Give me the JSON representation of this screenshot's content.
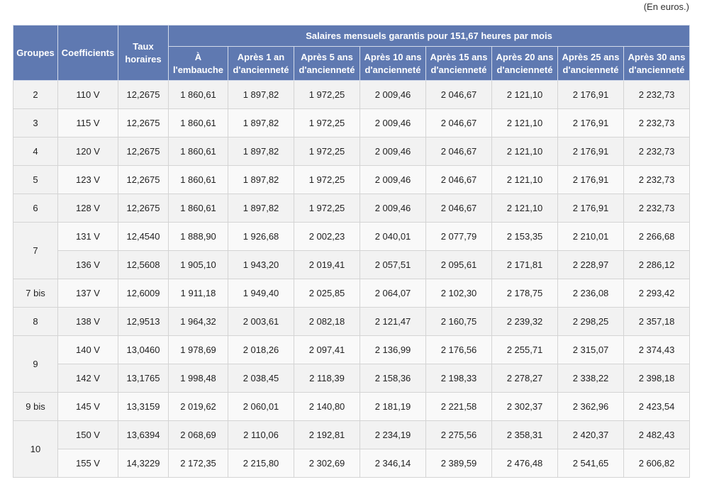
{
  "unit_note": "(En euros.)",
  "headers": {
    "groupes": "Groupes",
    "coefficients": "Coefficients",
    "taux_horaires": "Taux horaires",
    "salaires": "Salaires mensuels garantis pour 151,67 heures par mois",
    "periods": [
      "À l'embauche",
      "Après 1 an d'ancienneté",
      "Après 5 ans d'ancienneté",
      "Après 10 ans d'ancienneté",
      "Après 15 ans d'ancienneté",
      "Après 20 ans d'ancienneté",
      "Après 25 ans d'ancienneté",
      "Après 30 ans d'ancienneté"
    ]
  },
  "groups": [
    {
      "groupe": "2",
      "rows": [
        {
          "coef": "110 V",
          "taux": "12,2675",
          "salaires": [
            "1 860,61",
            "1 897,82",
            "1 972,25",
            "2 009,46",
            "2 046,67",
            "2 121,10",
            "2 176,91",
            "2 232,73"
          ]
        }
      ]
    },
    {
      "groupe": "3",
      "rows": [
        {
          "coef": "115 V",
          "taux": "12,2675",
          "salaires": [
            "1 860,61",
            "1 897,82",
            "1 972,25",
            "2 009,46",
            "2 046,67",
            "2 121,10",
            "2 176,91",
            "2 232,73"
          ]
        }
      ]
    },
    {
      "groupe": "4",
      "rows": [
        {
          "coef": "120 V",
          "taux": "12,2675",
          "salaires": [
            "1 860,61",
            "1 897,82",
            "1 972,25",
            "2 009,46",
            "2 046,67",
            "2 121,10",
            "2 176,91",
            "2 232,73"
          ]
        }
      ]
    },
    {
      "groupe": "5",
      "rows": [
        {
          "coef": "123 V",
          "taux": "12,2675",
          "salaires": [
            "1 860,61",
            "1 897,82",
            "1 972,25",
            "2 009,46",
            "2 046,67",
            "2 121,10",
            "2 176,91",
            "2 232,73"
          ]
        }
      ]
    },
    {
      "groupe": "6",
      "rows": [
        {
          "coef": "128 V",
          "taux": "12,2675",
          "salaires": [
            "1 860,61",
            "1 897,82",
            "1 972,25",
            "2 009,46",
            "2 046,67",
            "2 121,10",
            "2 176,91",
            "2 232,73"
          ]
        }
      ]
    },
    {
      "groupe": "7",
      "rows": [
        {
          "coef": "131 V",
          "taux": "12,4540",
          "salaires": [
            "1 888,90",
            "1 926,68",
            "2 002,23",
            "2 040,01",
            "2 077,79",
            "2 153,35",
            "2 210,01",
            "2 266,68"
          ]
        },
        {
          "coef": "136 V",
          "taux": "12,5608",
          "salaires": [
            "1 905,10",
            "1 943,20",
            "2 019,41",
            "2 057,51",
            "2 095,61",
            "2 171,81",
            "2 228,97",
            "2 286,12"
          ]
        }
      ]
    },
    {
      "groupe": "7 bis",
      "rows": [
        {
          "coef": "137 V",
          "taux": "12,6009",
          "salaires": [
            "1 911,18",
            "1 949,40",
            "2 025,85",
            "2 064,07",
            "2 102,30",
            "2 178,75",
            "2 236,08",
            "2 293,42"
          ]
        }
      ]
    },
    {
      "groupe": "8",
      "rows": [
        {
          "coef": "138 V",
          "taux": "12,9513",
          "salaires": [
            "1 964,32",
            "2 003,61",
            "2 082,18",
            "2 121,47",
            "2 160,75",
            "2 239,32",
            "2 298,25",
            "2 357,18"
          ]
        }
      ]
    },
    {
      "groupe": "9",
      "rows": [
        {
          "coef": "140 V",
          "taux": "13,0460",
          "salaires": [
            "1 978,69",
            "2 018,26",
            "2 097,41",
            "2 136,99",
            "2 176,56",
            "2 255,71",
            "2 315,07",
            "2 374,43"
          ]
        },
        {
          "coef": "142 V",
          "taux": "13,1765",
          "salaires": [
            "1 998,48",
            "2 038,45",
            "2 118,39",
            "2 158,36",
            "2 198,33",
            "2 278,27",
            "2 338,22",
            "2 398,18"
          ]
        }
      ]
    },
    {
      "groupe": "9 bis",
      "rows": [
        {
          "coef": "145 V",
          "taux": "13,3159",
          "salaires": [
            "2 019,62",
            "2 060,01",
            "2 140,80",
            "2 181,19",
            "2 221,58",
            "2 302,37",
            "2 362,96",
            "2 423,54"
          ]
        }
      ]
    },
    {
      "groupe": "10",
      "rows": [
        {
          "coef": "150 V",
          "taux": "13,6394",
          "salaires": [
            "2 068,69",
            "2 110,06",
            "2 192,81",
            "2 234,19",
            "2 275,56",
            "2 358,31",
            "2 420,37",
            "2 482,43"
          ]
        },
        {
          "coef": "155 V",
          "taux": "14,3229",
          "salaires": [
            "2 172,35",
            "2 215,80",
            "2 302,69",
            "2 346,14",
            "2 389,59",
            "2 476,48",
            "2 541,65",
            "2 606,82"
          ]
        }
      ]
    }
  ]
}
